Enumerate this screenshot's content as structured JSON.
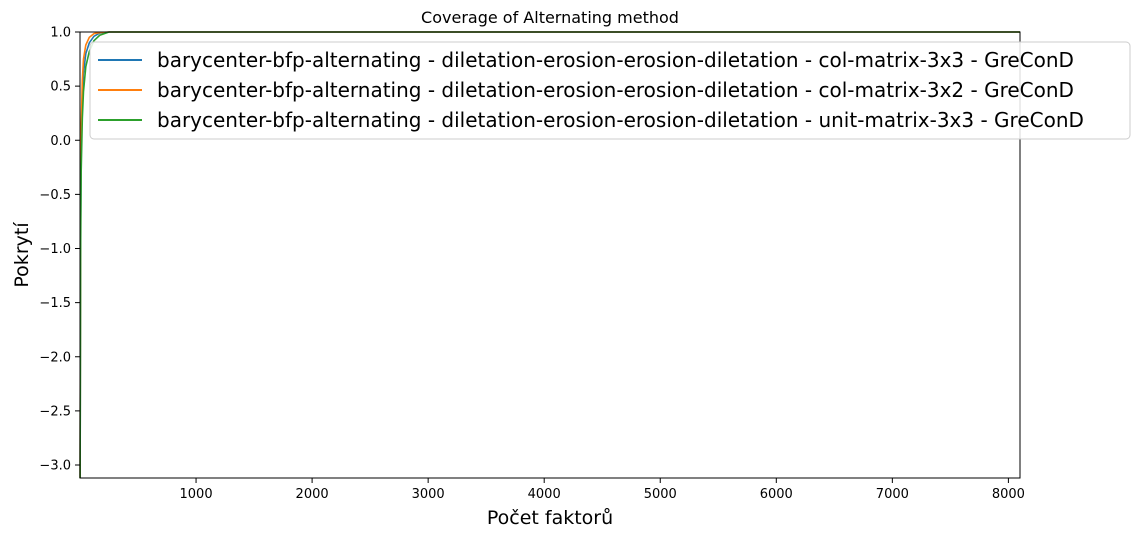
{
  "chart_data": {
    "type": "line",
    "title": "Coverage of Alternating method",
    "xlabel": "Počet faktorů",
    "ylabel": "Pokrytí",
    "xlim": [
      0,
      8100
    ],
    "ylim": [
      -3.12,
      1.0
    ],
    "xticks": [
      1000,
      2000,
      3000,
      4000,
      5000,
      6000,
      7000,
      8000
    ],
    "yticks": [
      1.0,
      0.5,
      0.0,
      -0.5,
      -1.0,
      -1.5,
      -2.0,
      -2.5,
      -3.0
    ],
    "grid": false,
    "legend_position": "top-right",
    "series": [
      {
        "name": "barycenter-bfp-alternating - diletation-erosion-erosion-diletation - col-matrix-3x3 - GreConD",
        "color": "#1f77b4",
        "x": [
          1,
          5,
          10,
          20,
          30,
          50,
          80,
          120,
          170,
          250,
          8100
        ],
        "y": [
          -3.12,
          -0.9,
          -0.1,
          0.4,
          0.62,
          0.8,
          0.9,
          0.96,
          0.99,
          1.0,
          1.0
        ]
      },
      {
        "name": "barycenter-bfp-alternating - diletation-erosion-erosion-diletation - col-matrix-3x2 - GreConD",
        "color": "#ff7f0e",
        "x": [
          1,
          5,
          10,
          20,
          30,
          50,
          80,
          120,
          170,
          250,
          8100
        ],
        "y": [
          -3.12,
          -0.6,
          0.1,
          0.55,
          0.75,
          0.88,
          0.95,
          0.985,
          0.995,
          1.0,
          1.0
        ]
      },
      {
        "name": "barycenter-bfp-alternating - diletation-erosion-erosion-diletation - unit-matrix-3x3 - GreConD",
        "color": "#2ca02c",
        "x": [
          1,
          5,
          10,
          20,
          30,
          50,
          80,
          120,
          170,
          250,
          8100
        ],
        "y": [
          -3.12,
          -1.1,
          -0.3,
          0.2,
          0.45,
          0.68,
          0.82,
          0.92,
          0.97,
          1.0,
          1.0
        ]
      }
    ]
  }
}
